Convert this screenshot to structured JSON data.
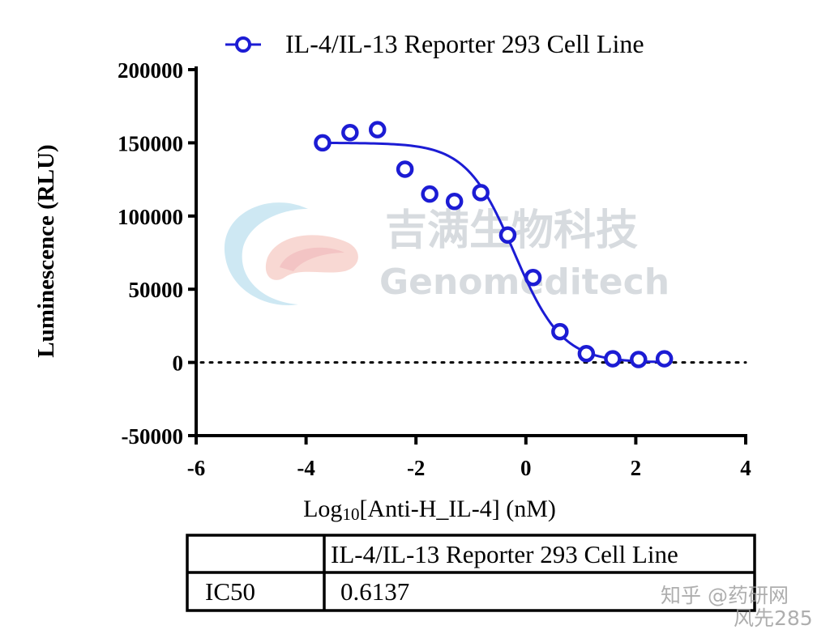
{
  "chart_data": {
    "type": "scatter",
    "xlabel_prefix": "Log",
    "xlabel_sub": "10",
    "xlabel_suffix": "[Anti-H_IL-4] (nM)",
    "ylabel": "Luminescence (RLU)",
    "xlim": [
      -6,
      4
    ],
    "ylim": [
      -50000,
      200000
    ],
    "x_ticks": [
      "-6",
      "-4",
      "-2",
      "0",
      "2",
      "4"
    ],
    "y_ticks": [
      "200000",
      "150000",
      "100000",
      "50000",
      "0",
      "-50000"
    ],
    "legend_position": "top",
    "zero_reference_line": "dotted",
    "series": [
      {
        "name": "IL-4/IL-13 Reporter 293 Cell Line",
        "color": "#1c1cd4",
        "marker": "open-circle",
        "x": [
          -3.7,
          -3.2,
          -2.7,
          -2.2,
          -1.75,
          -1.3,
          -0.82,
          -0.33,
          0.13,
          0.62,
          1.1,
          1.58,
          2.05,
          2.52
        ],
        "y": [
          150000,
          157000,
          159000,
          132000,
          115000,
          110000,
          116000,
          87000,
          58000,
          21000,
          6000,
          2500,
          2000,
          2500
        ]
      }
    ],
    "fit_curve": {
      "model": "four-parameter logistic",
      "top": 150000,
      "bottom": 0,
      "logIC50": -0.212,
      "hill": 1.0
    }
  },
  "table": {
    "header": [
      "",
      "IL-4/IL-13 Reporter 293 Cell Line"
    ],
    "rows": [
      [
        "IC50",
        "0.6137"
      ]
    ]
  },
  "watermark": {
    "chinese": "吉满生物科技",
    "english": "Genomeditech"
  },
  "credit": {
    "line1": "知乎 @药研网",
    "line2": "风先285"
  }
}
